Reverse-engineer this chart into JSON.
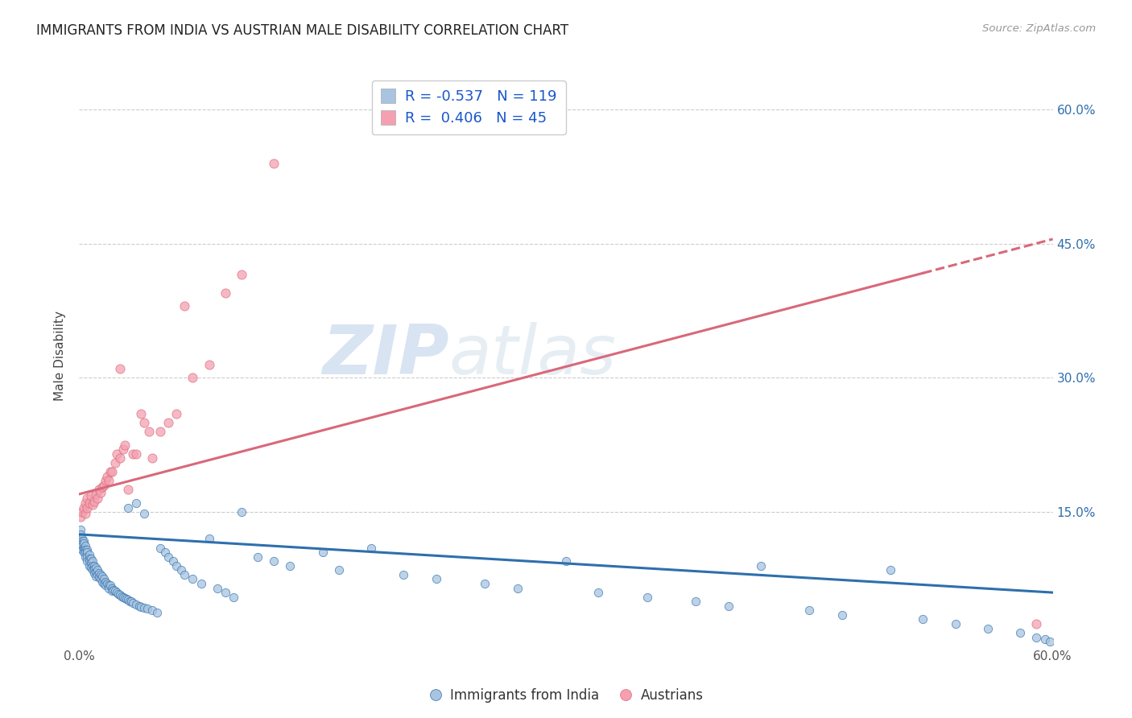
{
  "title": "IMMIGRANTS FROM INDIA VS AUSTRIAN MALE DISABILITY CORRELATION CHART",
  "source": "Source: ZipAtlas.com",
  "ylabel": "Male Disability",
  "x_min": 0.0,
  "x_max": 0.6,
  "y_min": 0.0,
  "y_max": 0.65,
  "x_ticks": [
    0.0,
    0.12,
    0.24,
    0.36,
    0.48,
    0.6
  ],
  "x_tick_labels": [
    "0.0%",
    "",
    "",
    "",
    "",
    "60.0%"
  ],
  "y_tick_labels_right": [
    "60.0%",
    "45.0%",
    "30.0%",
    "15.0%"
  ],
  "y_ticks_right": [
    0.6,
    0.45,
    0.3,
    0.15
  ],
  "blue_R": -0.537,
  "blue_N": 119,
  "pink_R": 0.406,
  "pink_N": 45,
  "blue_color": "#a8c4e0",
  "pink_color": "#f4a0b0",
  "blue_line_color": "#2e6fad",
  "pink_line_color": "#d9687a",
  "legend_blue_label": "Immigrants from India",
  "legend_pink_label": "Austrians",
  "watermark_zip": "ZIP",
  "watermark_atlas": "atlas",
  "background_color": "#ffffff",
  "blue_line_x0": 0.0,
  "blue_line_x1": 0.6,
  "blue_line_y0": 0.125,
  "blue_line_y1": 0.06,
  "pink_line_x0": 0.0,
  "pink_line_x1": 0.6,
  "pink_line_y0": 0.17,
  "pink_line_y1": 0.455,
  "pink_line_solid_end": 0.52,
  "blue_scatter_x": [
    0.001,
    0.001,
    0.001,
    0.001,
    0.002,
    0.002,
    0.002,
    0.002,
    0.002,
    0.003,
    0.003,
    0.003,
    0.003,
    0.003,
    0.004,
    0.004,
    0.004,
    0.004,
    0.005,
    0.005,
    0.005,
    0.005,
    0.006,
    0.006,
    0.006,
    0.006,
    0.007,
    0.007,
    0.007,
    0.008,
    0.008,
    0.008,
    0.009,
    0.009,
    0.009,
    0.01,
    0.01,
    0.01,
    0.011,
    0.011,
    0.012,
    0.012,
    0.013,
    0.013,
    0.014,
    0.014,
    0.015,
    0.015,
    0.016,
    0.016,
    0.017,
    0.018,
    0.018,
    0.019,
    0.02,
    0.02,
    0.021,
    0.022,
    0.023,
    0.024,
    0.025,
    0.026,
    0.027,
    0.028,
    0.029,
    0.03,
    0.031,
    0.032,
    0.033,
    0.035,
    0.037,
    0.038,
    0.04,
    0.042,
    0.045,
    0.048,
    0.05,
    0.053,
    0.055,
    0.058,
    0.06,
    0.063,
    0.065,
    0.07,
    0.075,
    0.08,
    0.085,
    0.09,
    0.095,
    0.1,
    0.11,
    0.12,
    0.13,
    0.15,
    0.16,
    0.18,
    0.2,
    0.22,
    0.25,
    0.27,
    0.3,
    0.32,
    0.35,
    0.38,
    0.4,
    0.42,
    0.45,
    0.47,
    0.5,
    0.52,
    0.54,
    0.56,
    0.58,
    0.59,
    0.595,
    0.598,
    0.03,
    0.035,
    0.04
  ],
  "blue_scatter_y": [
    0.13,
    0.125,
    0.12,
    0.115,
    0.12,
    0.118,
    0.115,
    0.112,
    0.108,
    0.118,
    0.115,
    0.11,
    0.108,
    0.105,
    0.112,
    0.108,
    0.105,
    0.1,
    0.108,
    0.105,
    0.1,
    0.095,
    0.102,
    0.098,
    0.095,
    0.09,
    0.098,
    0.093,
    0.088,
    0.095,
    0.09,
    0.085,
    0.09,
    0.086,
    0.082,
    0.088,
    0.083,
    0.078,
    0.085,
    0.08,
    0.082,
    0.077,
    0.08,
    0.075,
    0.078,
    0.072,
    0.075,
    0.07,
    0.072,
    0.068,
    0.07,
    0.068,
    0.065,
    0.068,
    0.065,
    0.062,
    0.063,
    0.062,
    0.06,
    0.058,
    0.057,
    0.056,
    0.055,
    0.054,
    0.053,
    0.052,
    0.05,
    0.05,
    0.048,
    0.047,
    0.045,
    0.044,
    0.043,
    0.042,
    0.04,
    0.038,
    0.11,
    0.105,
    0.1,
    0.095,
    0.09,
    0.085,
    0.08,
    0.075,
    0.07,
    0.12,
    0.065,
    0.06,
    0.055,
    0.15,
    0.1,
    0.095,
    0.09,
    0.105,
    0.085,
    0.11,
    0.08,
    0.075,
    0.07,
    0.065,
    0.095,
    0.06,
    0.055,
    0.05,
    0.045,
    0.09,
    0.04,
    0.035,
    0.085,
    0.03,
    0.025,
    0.02,
    0.015,
    0.01,
    0.008,
    0.005,
    0.155,
    0.16,
    0.148
  ],
  "pink_scatter_x": [
    0.001,
    0.002,
    0.003,
    0.004,
    0.004,
    0.005,
    0.005,
    0.006,
    0.007,
    0.008,
    0.009,
    0.01,
    0.011,
    0.012,
    0.013,
    0.014,
    0.015,
    0.016,
    0.017,
    0.018,
    0.019,
    0.02,
    0.022,
    0.023,
    0.025,
    0.027,
    0.028,
    0.03,
    0.033,
    0.035,
    0.038,
    0.04,
    0.043,
    0.045,
    0.05,
    0.055,
    0.06,
    0.065,
    0.07,
    0.08,
    0.09,
    0.1,
    0.12,
    0.59,
    0.025
  ],
  "pink_scatter_y": [
    0.145,
    0.15,
    0.155,
    0.148,
    0.16,
    0.155,
    0.165,
    0.16,
    0.168,
    0.158,
    0.162,
    0.17,
    0.165,
    0.175,
    0.172,
    0.178,
    0.18,
    0.185,
    0.19,
    0.185,
    0.195,
    0.195,
    0.205,
    0.215,
    0.21,
    0.22,
    0.225,
    0.175,
    0.215,
    0.215,
    0.26,
    0.25,
    0.24,
    0.21,
    0.24,
    0.25,
    0.26,
    0.38,
    0.3,
    0.315,
    0.395,
    0.415,
    0.54,
    0.025,
    0.31
  ]
}
